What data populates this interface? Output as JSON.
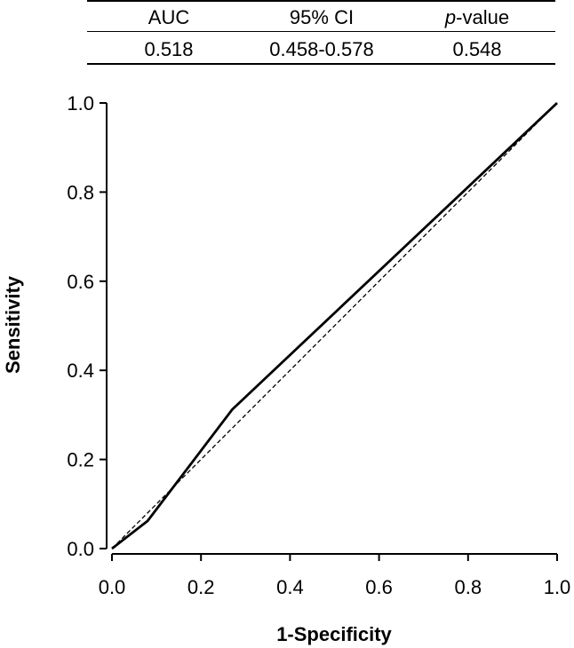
{
  "stats_table": {
    "headers": [
      {
        "label": "AUC",
        "italic_prefix": ""
      },
      {
        "label": "95% CI",
        "italic_prefix": ""
      },
      {
        "label": "-value",
        "italic_prefix": "p"
      }
    ],
    "values": [
      "0.518",
      "0.458-0.578",
      "0.548"
    ]
  },
  "chart_data": {
    "type": "line",
    "title": "",
    "xlabel": "1-Specificity",
    "ylabel": "Sensitivity",
    "xlim": [
      0.0,
      1.0
    ],
    "ylim": [
      0.0,
      1.0
    ],
    "x_ticks": [
      "0.0",
      "0.2",
      "0.4",
      "0.6",
      "0.8",
      "1.0"
    ],
    "y_ticks": [
      "0.0",
      "0.2",
      "0.4",
      "0.6",
      "0.8",
      "1.0"
    ],
    "grid": false,
    "legend": "none",
    "series": [
      {
        "style": "solid",
        "color": "#000000",
        "x": [
          0.0,
          0.08,
          0.27,
          1.0
        ],
        "y": [
          0.0,
          0.062,
          0.312,
          1.0
        ]
      },
      {
        "style": "dashed",
        "color": "#000000",
        "x": [
          0.0,
          1.0
        ],
        "y": [
          0.0,
          1.0
        ]
      }
    ]
  }
}
